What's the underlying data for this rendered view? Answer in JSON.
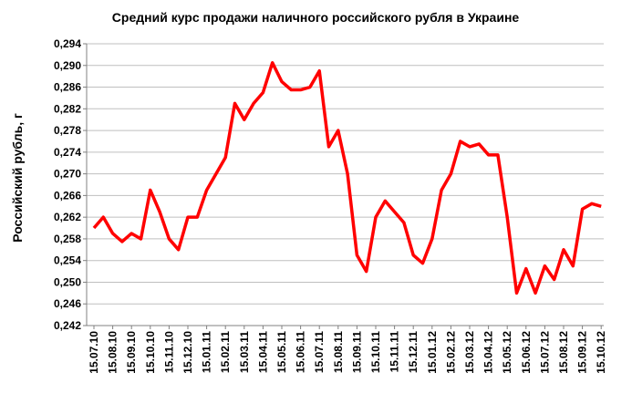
{
  "chart_data": {
    "type": "line",
    "title": "Средний курс продажи наличного российского рубля в Украине",
    "y_label": "Российский рубль, г",
    "categories": [
      "15.07.10",
      null,
      "15.08.10",
      null,
      "15.09.10",
      null,
      "15.10.10",
      null,
      "15.11.10",
      null,
      "15.12.10",
      null,
      "15.01.11",
      null,
      "15.02.11",
      null,
      "15.03.11",
      null,
      "15.04.11",
      null,
      "15.05.11",
      null,
      "15.06.11",
      null,
      "15.07.11",
      null,
      "15.08.11",
      null,
      "15.09.11",
      null,
      "15.10.11",
      null,
      "15.11.11",
      null,
      "15.12.11",
      null,
      "15.01.12",
      null,
      "15.02.12",
      null,
      "15.03.12",
      null,
      "15.04.12",
      null,
      "15.05.12",
      null,
      "15.06.12",
      null,
      "15.07.12",
      null,
      "15.08.12",
      null,
      "15.09.12",
      null,
      "15.10.12"
    ],
    "values": [
      0.26,
      0.262,
      0.259,
      0.2575,
      0.259,
      0.258,
      0.267,
      0.263,
      0.258,
      0.256,
      0.262,
      0.262,
      0.267,
      0.27,
      0.273,
      0.283,
      0.28,
      0.283,
      0.285,
      0.2905,
      0.287,
      0.2855,
      0.2855,
      0.286,
      0.289,
      0.275,
      0.278,
      0.27,
      0.255,
      0.252,
      0.262,
      0.265,
      0.263,
      0.261,
      0.255,
      0.2535,
      0.258,
      0.267,
      0.27,
      0.276,
      0.275,
      0.2755,
      0.2735,
      0.2735,
      0.262,
      0.248,
      0.2525,
      0.248,
      0.253,
      0.2505,
      0.256,
      0.253,
      0.2635,
      0.2645,
      0.264
    ],
    "color": "#ff0000",
    "ylim": [
      0.242,
      0.294
    ],
    "yticks": [
      {
        "value": 0.242,
        "label": "0,242"
      },
      {
        "value": 0.246,
        "label": "0,246"
      },
      {
        "value": 0.25,
        "label": "0,250"
      },
      {
        "value": 0.254,
        "label": "0,254"
      },
      {
        "value": 0.258,
        "label": "0,258"
      },
      {
        "value": 0.262,
        "label": "0,262"
      },
      {
        "value": 0.266,
        "label": "0,266"
      },
      {
        "value": 0.27,
        "label": "0,270"
      },
      {
        "value": 0.274,
        "label": "0,274"
      },
      {
        "value": 0.278,
        "label": "0,278"
      },
      {
        "value": 0.282,
        "label": "0,282"
      },
      {
        "value": 0.286,
        "label": "0,286"
      },
      {
        "value": 0.29,
        "label": "0,290"
      },
      {
        "value": 0.294,
        "label": "0,294"
      }
    ],
    "grid": true
  }
}
